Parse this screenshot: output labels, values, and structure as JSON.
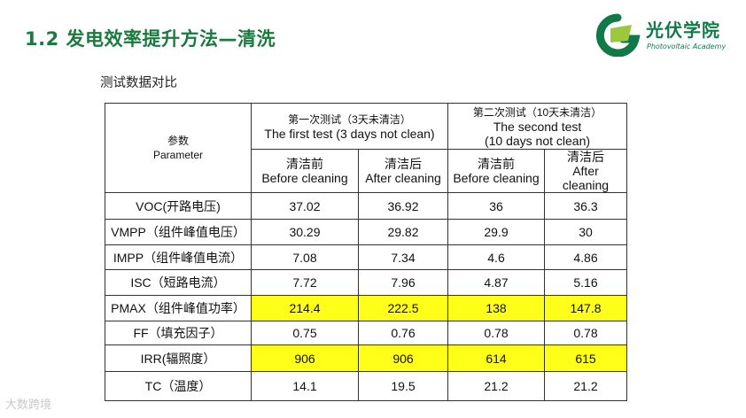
{
  "header": {
    "title": "1.2 发电效率提升方法—清洗",
    "logo_cn": "光伏学院",
    "logo_en": "Photovoltaic Academy"
  },
  "subtitle": "测试数据对比",
  "table": {
    "param_cn": "参数",
    "param_en": "Parameter",
    "test1_cn": "第一次测试（3天未清洁）",
    "test1_en": "The first test (3 days not clean)",
    "test2_cn": "第二次测试（10天未清洁）",
    "test2_en1": "The second test",
    "test2_en2": "(10 days not clean)",
    "before_cn": "清洁前",
    "before_en": "Before cleaning",
    "after_cn": "清洁后",
    "after_en": "After cleaning",
    "after_en_a": "After",
    "after_en_b": "cleaning",
    "rows": [
      {
        "label": "VOC(开路电压)",
        "v": [
          "37.02",
          "36.92",
          "36",
          "36.3"
        ],
        "highlight": false
      },
      {
        "label": "VMPP（组件峰值电压）",
        "v": [
          "30.29",
          "29.82",
          "29.9",
          "30"
        ],
        "highlight": false
      },
      {
        "label": "IMPP（组件峰值电流）",
        "v": [
          "7.08",
          "7.34",
          "4.6",
          "4.86"
        ],
        "highlight": false
      },
      {
        "label": "ISC（短路电流）",
        "v": [
          "7.72",
          "7.96",
          "4.87",
          "5.16"
        ],
        "highlight": false
      },
      {
        "label": "PMAX（组件峰值功率）",
        "v": [
          "214.4",
          "222.5",
          "138",
          "147.8"
        ],
        "highlight": true
      },
      {
        "label": "FF（填充因子）",
        "v": [
          "0.75",
          "0.76",
          "0.78",
          "0.78"
        ],
        "highlight": false
      },
      {
        "label": "IRR(辐照度）",
        "v": [
          "906",
          "906",
          "614",
          "615"
        ],
        "highlight": true
      },
      {
        "label": "TC（温度）",
        "v": [
          "14.1",
          "19.5",
          "21.2",
          "21.2"
        ],
        "highlight": false
      }
    ]
  },
  "watermark": "大数跨境",
  "colors": {
    "title": "#1a7a3e",
    "highlight": "#ffff1a",
    "logo": "#0f7a47"
  }
}
